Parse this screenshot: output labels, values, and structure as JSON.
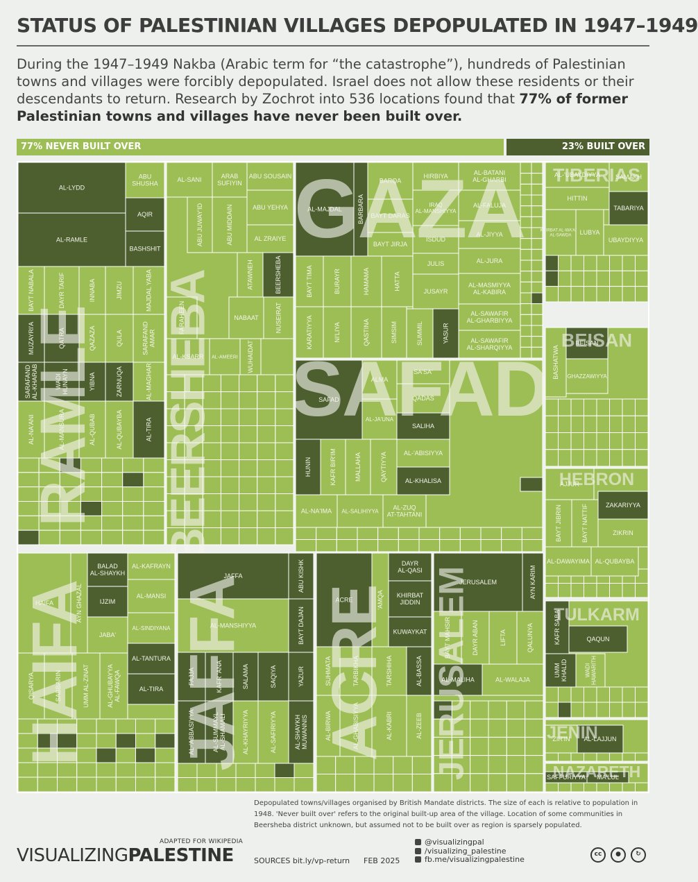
{
  "title": "STATUS OF PALESTINIAN VILLAGES DEPOPULATED IN 1947–1949",
  "intro": {
    "text": "During the 1947–1949 Nakba (Arabic term for “the catastrophe”), hundreds of Palestinian towns and villages were forcibly depopulated. Israel does not allow these residents or their descendants to return. Research by Zochrot into 536 locations found that ",
    "bold": "77% of former Palestinian towns and villages have never been built over."
  },
  "summary_bar": {
    "never_label": "77% NEVER BUILT OVER",
    "built_label": "23% BUILT OVER"
  },
  "colors": {
    "never": "#9dbe55",
    "built": "#4d5f2f",
    "background": "#eef0ee",
    "grid": "#ffffff"
  },
  "chart_data": {
    "type": "treemap",
    "title": "Status of Palestinian villages depopulated in 1947–1949",
    "summary": {
      "never_built_over_pct": 77,
      "built_over_pct": 23,
      "locations_researched": 536
    },
    "legend": [
      "never built over (light green)",
      "built over (dark green)"
    ],
    "districts": [
      {
        "name": "RAMLE",
        "villages": [
          {
            "name": "AL-LYDD",
            "status": "built"
          },
          {
            "name": "AL-RAMLE",
            "status": "built"
          },
          {
            "name": "ABU SHUSHA",
            "status": "never"
          },
          {
            "name": "AQIR",
            "status": "built"
          },
          {
            "name": "BASHSHIT",
            "status": "built"
          },
          {
            "name": "BAYT NABALA",
            "status": "never"
          },
          {
            "name": "DAYR TARIF",
            "status": "never"
          },
          {
            "name": "INNABA",
            "status": "never"
          },
          {
            "name": "JIMZU",
            "status": "never"
          },
          {
            "name": "MAJDAL YABA",
            "status": "never"
          },
          {
            "name": "MUZAYRI'A",
            "status": "built"
          },
          {
            "name": "QATRA",
            "status": "built"
          },
          {
            "name": "QAZAZA",
            "status": "never"
          },
          {
            "name": "QULA",
            "status": "never"
          },
          {
            "name": "SARAFAND AMAR",
            "status": "never"
          },
          {
            "name": "SARAFAND AL-KHARAB",
            "status": "built"
          },
          {
            "name": "WADI HUNAYN",
            "status": "built"
          },
          {
            "name": "YIBNA",
            "status": "built"
          },
          {
            "name": "ZARNUQA",
            "status": "built"
          },
          {
            "name": "AL-MAGHAR",
            "status": "never"
          },
          {
            "name": "AL-NA'ANI",
            "status": "never"
          },
          {
            "name": "AL-MANSURA",
            "status": "never"
          },
          {
            "name": "AL-QUBAB",
            "status": "never"
          },
          {
            "name": "AL-QUBAYBA",
            "status": "never"
          },
          {
            "name": "AL-TIRA",
            "status": "built"
          }
        ]
      },
      {
        "name": "BEERSHEBA",
        "villages": [
          {
            "name": "AL-SANI",
            "status": "never"
          },
          {
            "name": "ARAB SUFIYIN",
            "status": "never"
          },
          {
            "name": "ABU SOUSAIN",
            "status": "never"
          },
          {
            "name": "ABU YEHYA",
            "status": "never"
          },
          {
            "name": "ABU JUWAY'ID",
            "status": "never"
          },
          {
            "name": "ABU MIDDAIN",
            "status": "never"
          },
          {
            "name": "AL ZRAIYE",
            "status": "never"
          },
          {
            "name": "BEERSHEBA",
            "status": "built"
          },
          {
            "name": "ATAWNEH",
            "status": "never"
          },
          {
            "name": "NABAAT",
            "status": "never"
          },
          {
            "name": "NUSEIRAT",
            "status": "never"
          },
          {
            "name": "FARAHEEN",
            "status": "never"
          },
          {
            "name": "AL-KSARR",
            "status": "never"
          },
          {
            "name": "AL-AMEERI",
            "status": "never"
          },
          {
            "name": "WUHAIDAT",
            "status": "never"
          }
        ]
      },
      {
        "name": "GAZA",
        "villages": [
          {
            "name": "AL-MAJDAL",
            "status": "built"
          },
          {
            "name": "BARBARA",
            "status": "built"
          },
          {
            "name": "BARQA",
            "status": "never"
          },
          {
            "name": "HIRBIYA",
            "status": "never"
          },
          {
            "name": "AL-BATANI AL-GHARBI",
            "status": "never"
          },
          {
            "name": "BAYT DARAS",
            "status": "never"
          },
          {
            "name": "IRAQ AL-MANSHIYYA",
            "status": "never"
          },
          {
            "name": "AL-FALUJA",
            "status": "never"
          },
          {
            "name": "BAYT JIRJA",
            "status": "never"
          },
          {
            "name": "ISDUD",
            "status": "never"
          },
          {
            "name": "AL-JIYYA",
            "status": "never"
          },
          {
            "name": "JULIS",
            "status": "never"
          },
          {
            "name": "AL-JURA",
            "status": "never"
          },
          {
            "name": "JUSAYR",
            "status": "never"
          },
          {
            "name": "AL-MASMIYYA AL-KABIRA",
            "status": "never"
          },
          {
            "name": "BAYT TIMA",
            "status": "never"
          },
          {
            "name": "BURAYR",
            "status": "never"
          },
          {
            "name": "HAMAMA",
            "status": "never"
          },
          {
            "name": "HATTA",
            "status": "never"
          },
          {
            "name": "KARATIYYA",
            "status": "never"
          },
          {
            "name": "NI'LIYA",
            "status": "never"
          },
          {
            "name": "QASTINA",
            "status": "never"
          },
          {
            "name": "SIMSIM",
            "status": "never"
          },
          {
            "name": "SUMMIL",
            "status": "never"
          },
          {
            "name": "YASUR",
            "status": "built"
          },
          {
            "name": "AL-SAWAFIR AL-GHARBIYYA",
            "status": "never"
          },
          {
            "name": "AL-SAWAFIR AL-SHARQIYYA",
            "status": "never"
          }
        ]
      },
      {
        "name": "SAFAD",
        "villages": [
          {
            "name": "SAFAD",
            "status": "built"
          },
          {
            "name": "ALMA",
            "status": "never"
          },
          {
            "name": "SA'SA'",
            "status": "never"
          },
          {
            "name": "QADAS",
            "status": "never"
          },
          {
            "name": "AL-JA'UNA",
            "status": "never"
          },
          {
            "name": "SALIHA",
            "status": "built"
          },
          {
            "name": "HUNIN",
            "status": "built"
          },
          {
            "name": "KAFR BIR'IM",
            "status": "never"
          },
          {
            "name": "MALLAHA",
            "status": "never"
          },
          {
            "name": "QAYTIYYA",
            "status": "never"
          },
          {
            "name": "AL-'ABISIYYA",
            "status": "never"
          },
          {
            "name": "AL-KHALISA",
            "status": "built"
          },
          {
            "name": "AL-NA'IMA",
            "status": "never"
          },
          {
            "name": "AL-SALIHIYYA",
            "status": "never"
          },
          {
            "name": "AL-ZUQ AT-TAHTANI",
            "status": "never"
          }
        ]
      },
      {
        "name": "TIBERIAS",
        "villages": [
          {
            "name": "AL-'UBAYDIYYA",
            "status": "never"
          },
          {
            "name": "SAMAKH",
            "status": "never"
          },
          {
            "name": "HITTIN",
            "status": "never"
          },
          {
            "name": "TABARIYA",
            "status": "built"
          },
          {
            "name": "KHIRBAT AL-WA'ARA AL-SAWDA",
            "status": "never"
          },
          {
            "name": "LUBYA",
            "status": "never"
          },
          {
            "name": "UBAYDIYYA",
            "status": "never"
          }
        ]
      },
      {
        "name": "BEISAN",
        "villages": [
          {
            "name": "BASHATWA",
            "status": "never"
          },
          {
            "name": "BEISAN",
            "status": "built"
          },
          {
            "name": "GHAZZAWIYYA",
            "status": "never"
          }
        ]
      },
      {
        "name": "HEBRON",
        "villages": [
          {
            "name": "AJJUR",
            "status": "never"
          },
          {
            "name": "BAYT JIBRIN",
            "status": "never"
          },
          {
            "name": "BAYT NATTIF",
            "status": "never"
          },
          {
            "name": "ZAKARIYYA",
            "status": "built"
          },
          {
            "name": "ZIKRIN",
            "status": "never"
          },
          {
            "name": "AL-DAWAYIMA",
            "status": "never"
          },
          {
            "name": "AL-QUBAYBA",
            "status": "never"
          }
        ]
      },
      {
        "name": "HAIFA",
        "villages": [
          {
            "name": "HAIFA",
            "status": "never"
          },
          {
            "name": "BALAD AL-SHAYKH",
            "status": "built"
          },
          {
            "name": "AL-KAFRAYN",
            "status": "never"
          },
          {
            "name": "AYN GHAZAL",
            "status": "never"
          },
          {
            "name": "IJZIM",
            "status": "built"
          },
          {
            "name": "AL-MANSI",
            "status": "never"
          },
          {
            "name": "JABA'",
            "status": "never"
          },
          {
            "name": "AL-SINDIYANA",
            "status": "never"
          },
          {
            "name": "AL-TANTURA",
            "status": "built"
          },
          {
            "name": "QISARYA",
            "status": "never"
          },
          {
            "name": "SABBARIN",
            "status": "never"
          },
          {
            "name": "UMM AL-ZINAT",
            "status": "never"
          },
          {
            "name": "AL-GHUBAYYA AL-FAWQA",
            "status": "never"
          },
          {
            "name": "AL-TIRA",
            "status": "built"
          }
        ]
      },
      {
        "name": "JAFFA",
        "villages": [
          {
            "name": "JAFFA",
            "status": "built"
          },
          {
            "name": "ABU KISHK",
            "status": "built"
          },
          {
            "name": "AL-MANSHIYYA",
            "status": "never"
          },
          {
            "name": "BAYT DAJAN",
            "status": "built"
          },
          {
            "name": "FAJJA",
            "status": "built"
          },
          {
            "name": "KAFR 'ANA",
            "status": "built"
          },
          {
            "name": "SALAMA",
            "status": "built"
          },
          {
            "name": "SAQIYA",
            "status": "built"
          },
          {
            "name": "YAZUR",
            "status": "built"
          },
          {
            "name": "AL-'ABBASIYYA",
            "status": "built"
          },
          {
            "name": "AL-SUMMAYL AL-SHAMALI",
            "status": "built"
          },
          {
            "name": "AL-KHAYRIYYA",
            "status": "never"
          },
          {
            "name": "AL-SAFIRIYYA",
            "status": "never"
          },
          {
            "name": "AL-SHAYKH MUWANNIS",
            "status": "built"
          }
        ]
      },
      {
        "name": "ACRE",
        "villages": [
          {
            "name": "ACRE",
            "status": "built"
          },
          {
            "name": "'AMQA",
            "status": "never"
          },
          {
            "name": "DAYR AL-QASI",
            "status": "built"
          },
          {
            "name": "KHIRBAT JIDDIN",
            "status": "built"
          },
          {
            "name": "KUWAYKAT",
            "status": "built"
          },
          {
            "name": "SUHMATA",
            "status": "never"
          },
          {
            "name": "TARBIKHA",
            "status": "never"
          },
          {
            "name": "TARSHIHA",
            "status": "never"
          },
          {
            "name": "AL-BASSA",
            "status": "built"
          },
          {
            "name": "AL-BIRWA",
            "status": "never"
          },
          {
            "name": "AL-GHABISIYYA",
            "status": "never"
          },
          {
            "name": "AL-KABRI",
            "status": "never"
          },
          {
            "name": "AL-ZEEB",
            "status": "never"
          }
        ]
      },
      {
        "name": "JERUSALEM",
        "villages": [
          {
            "name": "JERUSALEM",
            "status": "built"
          },
          {
            "name": "AYN KARIM",
            "status": "built"
          },
          {
            "name": "BAYT MAHSIR",
            "status": "never"
          },
          {
            "name": "DAYR ABAN",
            "status": "never"
          },
          {
            "name": "LIFTA",
            "status": "never"
          },
          {
            "name": "QALUNYA",
            "status": "never"
          },
          {
            "name": "AL-MALIHA",
            "status": "built"
          },
          {
            "name": "AL-WALAJA",
            "status": "never"
          }
        ]
      },
      {
        "name": "TULKARM",
        "villages": [
          {
            "name": "KAFR SABA",
            "status": "built"
          },
          {
            "name": "QAQUN",
            "status": "built"
          },
          {
            "name": "UMM KHALID",
            "status": "built"
          },
          {
            "name": "WADI HAWARITH",
            "status": "never"
          }
        ]
      },
      {
        "name": "JENIN",
        "villages": [
          {
            "name": "ZIR'IN",
            "status": "never"
          },
          {
            "name": "AL-LAJJUN",
            "status": "built"
          }
        ]
      },
      {
        "name": "NAZARETH",
        "villages": [
          {
            "name": "SAFFURIYYA",
            "status": "built"
          },
          {
            "name": "MA'LUL",
            "status": "built"
          }
        ]
      }
    ]
  },
  "footnote": "Depopulated towns/villages organised by British Mandate districts. The size of each is relative to population in 1948. 'Never built over' refers to the original built-up area of the village. Location of some communities in Beersheba district unknown, but assumed not to be built over as region is sparsely populated.",
  "footer": {
    "adapted": "ADAPTED FOR WIKIPEDIA",
    "logo_light": "VISUALIZING",
    "logo_bold": "PALESTINE",
    "sources": "SOURCES bit.ly/vp-return",
    "date": "FEB 2025",
    "social": [
      "@visualizingpal",
      "/visualizing_palestine",
      "fb.me/visualizingpalestine"
    ],
    "license_icons": [
      "cc-icon",
      "by-icon",
      "sa-icon"
    ]
  }
}
